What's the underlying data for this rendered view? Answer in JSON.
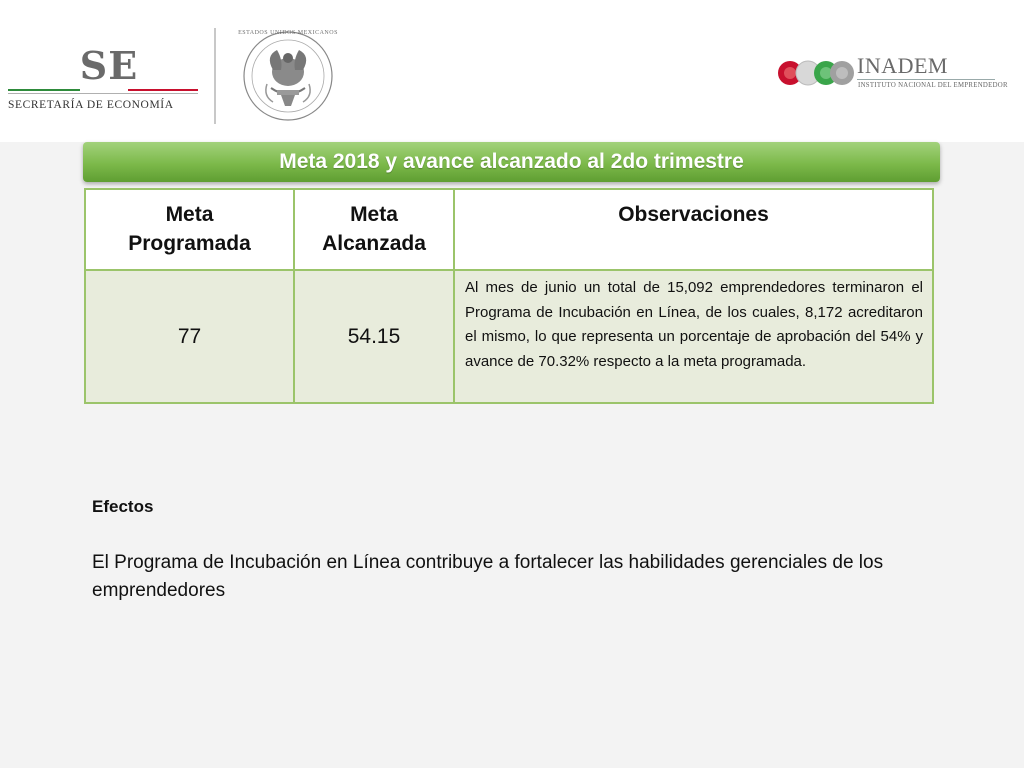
{
  "header": {
    "se_logo": {
      "mark": "SE",
      "name": "SECRETARÍA DE ECONOMÍA"
    },
    "seal": {
      "caption": "ESTADOS UNIDOS MEXICANOS"
    },
    "inadem_logo": {
      "title": "INADEM",
      "subtitle": "INSTITUTO NACIONAL DEL EMPRENDEDOR"
    },
    "colors": {
      "se_green": "#2e8b3b",
      "se_red": "#c8102e",
      "inadem_red": "#c8102e",
      "inadem_green": "#3aa54a",
      "inadem_gray": "#a0a0a0"
    }
  },
  "banner": {
    "title": "Meta 2018 y avance alcanzado al 2do trimestre",
    "color": "#7cb94a"
  },
  "table": {
    "headers": [
      "Meta Programada",
      "Meta Alcanzada",
      "Observaciones"
    ],
    "row": {
      "meta_programada": "77",
      "meta_alcanzada": "54.15",
      "observaciones": "Al mes de junio un total de 15,092 emprendedores terminaron el Programa de Incubación en Línea, de los cuales, 8,172 acreditaron el mismo, lo que representa un porcentaje de aprobación del 54% y avance de 70.32% respecto a la meta programada."
    }
  },
  "effects": {
    "title": "Efectos",
    "body": "El Programa de Incubación en Línea contribuye a fortalecer las habilidades gerenciales de los emprendedores"
  }
}
